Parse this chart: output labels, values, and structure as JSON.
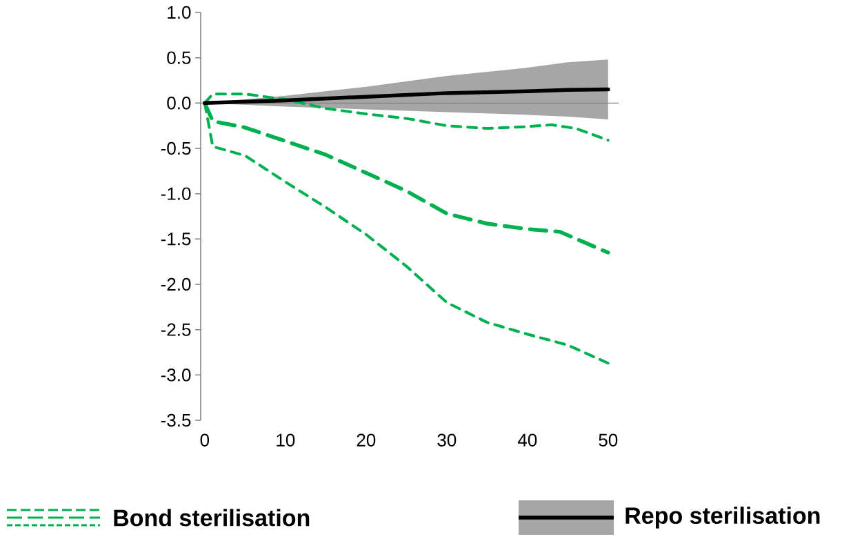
{
  "chart_data": {
    "type": "line",
    "xlim": [
      -0.5,
      51.3
    ],
    "ylim": [
      -3.5,
      1.0
    ],
    "xticks": [
      0,
      10,
      20,
      30,
      40,
      50
    ],
    "yticks": [
      {
        "value": 1.0,
        "label": "1.0"
      },
      {
        "value": 0.5,
        "label": "0.5"
      },
      {
        "value": 0,
        "label": "0.0"
      },
      {
        "value": -0.5,
        "label": "-0.5"
      },
      {
        "value": -1.0,
        "label": "-1.0"
      },
      {
        "value": -1.5,
        "label": "-1.5"
      },
      {
        "value": -2.0,
        "label": "-2.0"
      },
      {
        "value": -2.5,
        "label": "-2.5"
      },
      {
        "value": -3.0,
        "label": "-3.0"
      },
      {
        "value": -3.5,
        "label": "-3.5"
      }
    ],
    "grid": false,
    "legend": "bottom",
    "ref_lines": [
      {
        "axis": "y",
        "value": 0,
        "color": "#808080"
      }
    ],
    "series": [
      {
        "name": "Bond sterilisation",
        "color": "#00b050",
        "line_style": "dashed",
        "x": [
          0,
          1,
          5,
          10,
          15,
          20,
          25,
          30,
          35,
          40,
          44,
          50
        ],
        "values": [
          0,
          -0.2,
          -0.27,
          -0.42,
          -0.57,
          -0.77,
          -0.97,
          -1.22,
          -1.33,
          -1.39,
          -1.42,
          -1.65
        ]
      },
      {
        "color": "#00b050",
        "line_style": "dashed",
        "x": [
          0,
          1,
          5,
          10,
          15,
          20,
          25,
          30,
          35,
          40,
          43,
          46,
          50
        ],
        "values": [
          0,
          0.1,
          0.1,
          0.04,
          -0.06,
          -0.12,
          -0.17,
          -0.25,
          -0.28,
          -0.26,
          -0.24,
          -0.28,
          -0.41
        ]
      },
      {
        "color": "#00b050",
        "line_style": "dashed",
        "x": [
          0,
          1,
          5,
          10,
          15,
          20,
          25,
          30,
          35,
          40,
          45,
          50
        ],
        "values": [
          0,
          -0.48,
          -0.58,
          -0.87,
          -1.15,
          -1.45,
          -1.8,
          -2.2,
          -2.42,
          -2.55,
          -2.67,
          -2.87
        ]
      },
      {
        "name": "Repo sterilisation",
        "color": "#000000",
        "line_style": "solid",
        "x": [
          0,
          10,
          20,
          30,
          40,
          45,
          50
        ],
        "values": [
          0,
          0.03,
          0.07,
          0.11,
          0.13,
          0.145,
          0.15
        ],
        "lower": [
          0,
          -0.04,
          -0.07,
          -0.1,
          -0.13,
          -0.15,
          -0.18
        ],
        "upper": [
          0,
          0.08,
          0.18,
          0.3,
          0.39,
          0.45,
          0.48
        ]
      }
    ]
  }
}
